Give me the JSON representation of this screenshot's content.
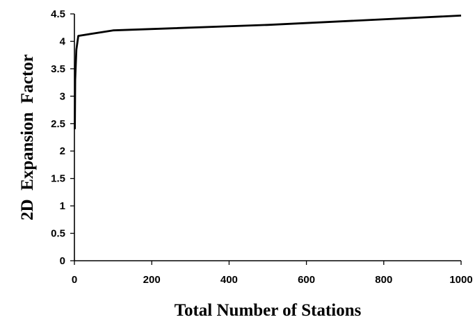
{
  "chart_data": {
    "type": "line",
    "title": "",
    "xlabel": "Total Number of Stations",
    "ylabel": "2D  Expansion  Factor",
    "xlim": [
      0,
      1000
    ],
    "ylim": [
      0,
      4.5
    ],
    "x_ticks": [
      0,
      200,
      400,
      600,
      800,
      1000
    ],
    "y_ticks": [
      0,
      0.5,
      1,
      1.5,
      2,
      2.5,
      3,
      3.5,
      4,
      4.5
    ],
    "x_tick_labels": [
      "0",
      "200",
      "400",
      "600",
      "800",
      "1000"
    ],
    "y_tick_labels": [
      "0",
      "0.5",
      "1",
      "1.5",
      "2",
      "2.5",
      "3",
      "3.5",
      "4",
      "4.5"
    ],
    "grid": false,
    "legend": "none",
    "series": [
      {
        "color": "#000000",
        "x": [
          1,
          2,
          5,
          10,
          100,
          500,
          1000
        ],
        "y": [
          2.4,
          3.3,
          3.85,
          4.1,
          4.2,
          4.3,
          4.47
        ]
      }
    ]
  }
}
